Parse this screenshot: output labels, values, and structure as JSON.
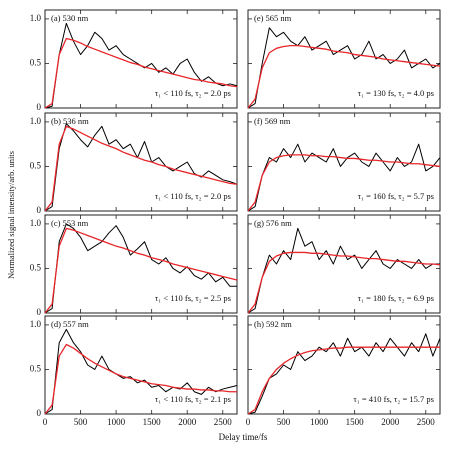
{
  "ylabel": "Normalized signal intensity/arb. units",
  "xlabel": "Delay time/fs",
  "chart_data": [
    {
      "type": "line",
      "label": "(a) 530 nm",
      "fit_text": "τ₁ < 110 fs, τ₂ = 2.0 ps",
      "xlim": [
        0,
        2700
      ],
      "ylim": [
        0,
        1.1
      ],
      "xticks": [
        0,
        500,
        1000,
        1500,
        2000,
        2500
      ],
      "yticks": [
        0,
        0.5,
        {
          "value": 1,
          "label": "1.0"
        }
      ],
      "yticklabels": true,
      "xticklabels": false,
      "x": [
        0,
        100,
        200,
        300,
        400,
        500,
        600,
        700,
        800,
        900,
        1000,
        1100,
        1200,
        1300,
        1400,
        1500,
        1600,
        1700,
        1800,
        1900,
        2000,
        2100,
        2200,
        2300,
        2400,
        2500,
        2600,
        2700
      ],
      "series": [
        {
          "color": "#000000",
          "values": [
            0,
            0.02,
            0.6,
            0.95,
            0.75,
            0.6,
            0.7,
            0.85,
            0.78,
            0.65,
            0.7,
            0.6,
            0.55,
            0.5,
            0.45,
            0.5,
            0.4,
            0.45,
            0.38,
            0.5,
            0.55,
            0.4,
            0.3,
            0.35,
            0.28,
            0.25,
            0.27,
            0.25
          ]
        },
        {
          "color": "#e8262a",
          "values": [
            0,
            0.05,
            0.6,
            0.78,
            0.76,
            0.73,
            0.69,
            0.66,
            0.63,
            0.6,
            0.57,
            0.54,
            0.51,
            0.49,
            0.46,
            0.44,
            0.42,
            0.4,
            0.38,
            0.36,
            0.34,
            0.32,
            0.31,
            0.29,
            0.28,
            0.27,
            0.25,
            0.24
          ]
        }
      ]
    },
    {
      "type": "line",
      "label": "(e) 565 nm",
      "fit_text": "τ₁ = 130 fs, τ₂ = 4.0 ps",
      "xlim": [
        0,
        2700
      ],
      "ylim": [
        0,
        1.1
      ],
      "xticks": [
        0,
        500,
        1000,
        1500,
        2000,
        2500
      ],
      "yticks": [
        0,
        0.5,
        {
          "value": 1,
          "label": "1.0"
        }
      ],
      "yticklabels": false,
      "xticklabels": false,
      "x": [
        0,
        100,
        200,
        300,
        400,
        500,
        600,
        700,
        800,
        900,
        1000,
        1100,
        1200,
        1300,
        1400,
        1500,
        1600,
        1700,
        1800,
        1900,
        2000,
        2100,
        2200,
        2300,
        2400,
        2500,
        2600,
        2700
      ],
      "series": [
        {
          "color": "#000000",
          "values": [
            0,
            0.05,
            0.5,
            0.9,
            0.8,
            0.85,
            0.75,
            0.7,
            0.8,
            0.65,
            0.7,
            0.75,
            0.6,
            0.65,
            0.7,
            0.55,
            0.6,
            0.75,
            0.55,
            0.6,
            0.5,
            0.55,
            0.65,
            0.45,
            0.5,
            0.55,
            0.45,
            0.5
          ]
        },
        {
          "color": "#e8262a",
          "values": [
            0,
            0.1,
            0.45,
            0.62,
            0.67,
            0.69,
            0.7,
            0.7,
            0.69,
            0.68,
            0.67,
            0.66,
            0.64,
            0.63,
            0.62,
            0.6,
            0.59,
            0.58,
            0.57,
            0.55,
            0.54,
            0.53,
            0.52,
            0.51,
            0.5,
            0.49,
            0.48,
            0.47
          ]
        }
      ]
    },
    {
      "type": "line",
      "label": "(b) 536 nm",
      "fit_text": "τ₁ < 110 fs, τ₂ = 2.0 ps",
      "xlim": [
        0,
        2700
      ],
      "ylim": [
        0,
        1.1
      ],
      "xticks": [
        0,
        500,
        1000,
        1500,
        2000,
        2500
      ],
      "yticks": [
        0,
        0.5,
        {
          "value": 1,
          "label": "1.0"
        }
      ],
      "yticklabels": true,
      "xticklabels": false,
      "x": [
        0,
        100,
        200,
        300,
        400,
        500,
        600,
        700,
        800,
        900,
        1000,
        1100,
        1200,
        1300,
        1400,
        1500,
        1600,
        1700,
        1800,
        1900,
        2000,
        2100,
        2200,
        2300,
        2400,
        2500,
        2600,
        2700
      ],
      "series": [
        {
          "color": "#000000",
          "values": [
            0,
            0.05,
            0.7,
            0.98,
            0.9,
            0.8,
            0.72,
            0.85,
            0.95,
            0.75,
            0.8,
            0.7,
            0.75,
            0.6,
            0.78,
            0.55,
            0.6,
            0.5,
            0.45,
            0.5,
            0.55,
            0.42,
            0.38,
            0.45,
            0.4,
            0.35,
            0.33,
            0.3
          ]
        },
        {
          "color": "#e8262a",
          "values": [
            0,
            0.1,
            0.75,
            0.95,
            0.92,
            0.88,
            0.84,
            0.8,
            0.76,
            0.73,
            0.7,
            0.66,
            0.63,
            0.6,
            0.57,
            0.55,
            0.52,
            0.5,
            0.47,
            0.45,
            0.43,
            0.41,
            0.39,
            0.37,
            0.35,
            0.33,
            0.31,
            0.3
          ]
        }
      ]
    },
    {
      "type": "line",
      "label": "(f) 569 nm",
      "fit_text": "τ₁ = 160 fs, τ₂ = 5.7 ps",
      "xlim": [
        0,
        2700
      ],
      "ylim": [
        0,
        1.1
      ],
      "xticks": [
        0,
        500,
        1000,
        1500,
        2000,
        2500
      ],
      "yticks": [
        0,
        0.5,
        {
          "value": 1,
          "label": "1.0"
        }
      ],
      "yticklabels": false,
      "xticklabels": false,
      "x": [
        0,
        100,
        200,
        300,
        400,
        500,
        600,
        700,
        800,
        900,
        1000,
        1100,
        1200,
        1300,
        1400,
        1500,
        1600,
        1700,
        1800,
        1900,
        2000,
        2100,
        2200,
        2300,
        2400,
        2500,
        2600,
        2700
      ],
      "series": [
        {
          "color": "#000000",
          "values": [
            0,
            0.05,
            0.4,
            0.6,
            0.55,
            0.7,
            0.6,
            0.75,
            0.55,
            0.65,
            0.6,
            0.55,
            0.7,
            0.5,
            0.6,
            0.65,
            0.55,
            0.5,
            0.65,
            0.55,
            0.45,
            0.6,
            0.5,
            0.55,
            0.75,
            0.45,
            0.5,
            0.6
          ]
        },
        {
          "color": "#e8262a",
          "values": [
            0,
            0.1,
            0.4,
            0.55,
            0.6,
            0.62,
            0.63,
            0.63,
            0.63,
            0.62,
            0.62,
            0.61,
            0.61,
            0.6,
            0.59,
            0.59,
            0.58,
            0.57,
            0.57,
            0.56,
            0.55,
            0.55,
            0.54,
            0.53,
            0.53,
            0.52,
            0.51,
            0.5
          ]
        }
      ]
    },
    {
      "type": "line",
      "label": "(c) 553 nm",
      "fit_text": "τ₁ < 110 fs, τ₂ = 2.5 ps",
      "xlim": [
        0,
        2700
      ],
      "ylim": [
        0,
        1.1
      ],
      "xticks": [
        0,
        500,
        1000,
        1500,
        2000,
        2500
      ],
      "yticks": [
        0,
        0.5,
        {
          "value": 1,
          "label": "1.0"
        }
      ],
      "yticklabels": true,
      "xticklabels": false,
      "x": [
        0,
        100,
        200,
        300,
        400,
        500,
        600,
        700,
        800,
        900,
        1000,
        1100,
        1200,
        1300,
        1400,
        1500,
        1600,
        1700,
        1800,
        1900,
        2000,
        2100,
        2200,
        2300,
        2400,
        2500,
        2600,
        2700
      ],
      "series": [
        {
          "color": "#000000",
          "values": [
            0,
            0.05,
            0.8,
            1.0,
            0.95,
            0.85,
            0.7,
            0.75,
            0.8,
            0.9,
            0.98,
            0.85,
            0.65,
            0.72,
            0.8,
            0.6,
            0.55,
            0.62,
            0.5,
            0.45,
            0.52,
            0.42,
            0.38,
            0.45,
            0.35,
            0.4,
            0.3,
            0.3
          ]
        },
        {
          "color": "#e8262a",
          "values": [
            0,
            0.1,
            0.75,
            0.95,
            0.93,
            0.9,
            0.87,
            0.84,
            0.81,
            0.78,
            0.75,
            0.73,
            0.7,
            0.67,
            0.65,
            0.62,
            0.6,
            0.58,
            0.55,
            0.53,
            0.51,
            0.49,
            0.47,
            0.45,
            0.43,
            0.41,
            0.39,
            0.37
          ]
        }
      ]
    },
    {
      "type": "line",
      "label": "(g) 576 nm",
      "fit_text": "τ₁ = 180 fs, τ₂ = 6.9 ps",
      "xlim": [
        0,
        2700
      ],
      "ylim": [
        0,
        1.1
      ],
      "xticks": [
        0,
        500,
        1000,
        1500,
        2000,
        2500
      ],
      "yticks": [
        0,
        0.5,
        {
          "value": 1,
          "label": "1.0"
        }
      ],
      "yticklabels": false,
      "xticklabels": false,
      "x": [
        0,
        100,
        200,
        300,
        400,
        500,
        600,
        700,
        800,
        900,
        1000,
        1100,
        1200,
        1300,
        1400,
        1500,
        1600,
        1700,
        1800,
        1900,
        2000,
        2100,
        2200,
        2300,
        2400,
        2500,
        2600,
        2700
      ],
      "series": [
        {
          "color": "#000000",
          "values": [
            0,
            0.05,
            0.4,
            0.65,
            0.55,
            0.7,
            0.6,
            0.95,
            0.75,
            0.8,
            0.6,
            0.7,
            0.55,
            0.75,
            0.6,
            0.65,
            0.5,
            0.6,
            0.7,
            0.55,
            0.5,
            0.6,
            0.55,
            0.5,
            0.6,
            0.5,
            0.55,
            0.55
          ]
        },
        {
          "color": "#e8262a",
          "values": [
            0,
            0.1,
            0.4,
            0.58,
            0.64,
            0.67,
            0.68,
            0.68,
            0.68,
            0.67,
            0.67,
            0.66,
            0.65,
            0.64,
            0.64,
            0.63,
            0.62,
            0.61,
            0.61,
            0.6,
            0.59,
            0.58,
            0.58,
            0.57,
            0.56,
            0.55,
            0.55,
            0.54
          ]
        }
      ]
    },
    {
      "type": "line",
      "label": "(d) 557 nm",
      "fit_text": "τ₁ < 110 fs, τ₂ = 2.1 ps",
      "xlim": [
        0,
        2700
      ],
      "ylim": [
        0,
        1.1
      ],
      "xticks": [
        0,
        500,
        1000,
        1500,
        2000,
        2500
      ],
      "yticks": [
        0,
        0.5,
        {
          "value": 1,
          "label": "1.0"
        }
      ],
      "yticklabels": true,
      "xticklabels": true,
      "x": [
        0,
        100,
        200,
        300,
        400,
        500,
        600,
        700,
        800,
        900,
        1000,
        1100,
        1200,
        1300,
        1400,
        1500,
        1600,
        1700,
        1800,
        1900,
        2000,
        2100,
        2200,
        2300,
        2400,
        2500,
        2600,
        2700
      ],
      "series": [
        {
          "color": "#000000",
          "values": [
            0,
            0.05,
            0.8,
            0.95,
            0.8,
            0.7,
            0.55,
            0.5,
            0.65,
            0.5,
            0.45,
            0.4,
            0.42,
            0.35,
            0.38,
            0.3,
            0.32,
            0.25,
            0.3,
            0.28,
            0.35,
            0.25,
            0.22,
            0.3,
            0.25,
            0.28,
            0.3,
            0.32
          ]
        },
        {
          "color": "#e8262a",
          "values": [
            0,
            0.1,
            0.65,
            0.78,
            0.74,
            0.68,
            0.62,
            0.57,
            0.53,
            0.49,
            0.45,
            0.42,
            0.4,
            0.38,
            0.36,
            0.34,
            0.33,
            0.32,
            0.3,
            0.29,
            0.28,
            0.28,
            0.27,
            0.27,
            0.26,
            0.26,
            0.25,
            0.25
          ]
        }
      ]
    },
    {
      "type": "line",
      "label": "(h) 592 nm",
      "fit_text": "τ₁ = 410 fs, τ₂ = 15.7 ps",
      "xlim": [
        0,
        2700
      ],
      "ylim": [
        0,
        1.1
      ],
      "xticks": [
        0,
        500,
        1000,
        1500,
        2000,
        2500
      ],
      "yticks": [
        0,
        0.5,
        {
          "value": 1,
          "label": "1.0"
        }
      ],
      "yticklabels": false,
      "xticklabels": true,
      "x": [
        0,
        100,
        200,
        300,
        400,
        500,
        600,
        700,
        800,
        900,
        1000,
        1100,
        1200,
        1300,
        1400,
        1500,
        1600,
        1700,
        1800,
        1900,
        2000,
        2100,
        2200,
        2300,
        2400,
        2500,
        2600,
        2700
      ],
      "series": [
        {
          "color": "#000000",
          "values": [
            0,
            0.02,
            0.2,
            0.4,
            0.45,
            0.55,
            0.5,
            0.7,
            0.6,
            0.65,
            0.75,
            0.7,
            0.8,
            0.65,
            0.85,
            0.7,
            0.75,
            0.65,
            0.8,
            0.7,
            0.85,
            0.75,
            0.65,
            0.8,
            0.7,
            0.9,
            0.65,
            0.85
          ]
        },
        {
          "color": "#e8262a",
          "values": [
            0,
            0.05,
            0.25,
            0.4,
            0.5,
            0.57,
            0.62,
            0.66,
            0.69,
            0.71,
            0.72,
            0.73,
            0.74,
            0.74,
            0.75,
            0.75,
            0.75,
            0.75,
            0.75,
            0.75,
            0.75,
            0.75,
            0.75,
            0.75,
            0.75,
            0.75,
            0.75,
            0.75
          ]
        }
      ]
    }
  ]
}
